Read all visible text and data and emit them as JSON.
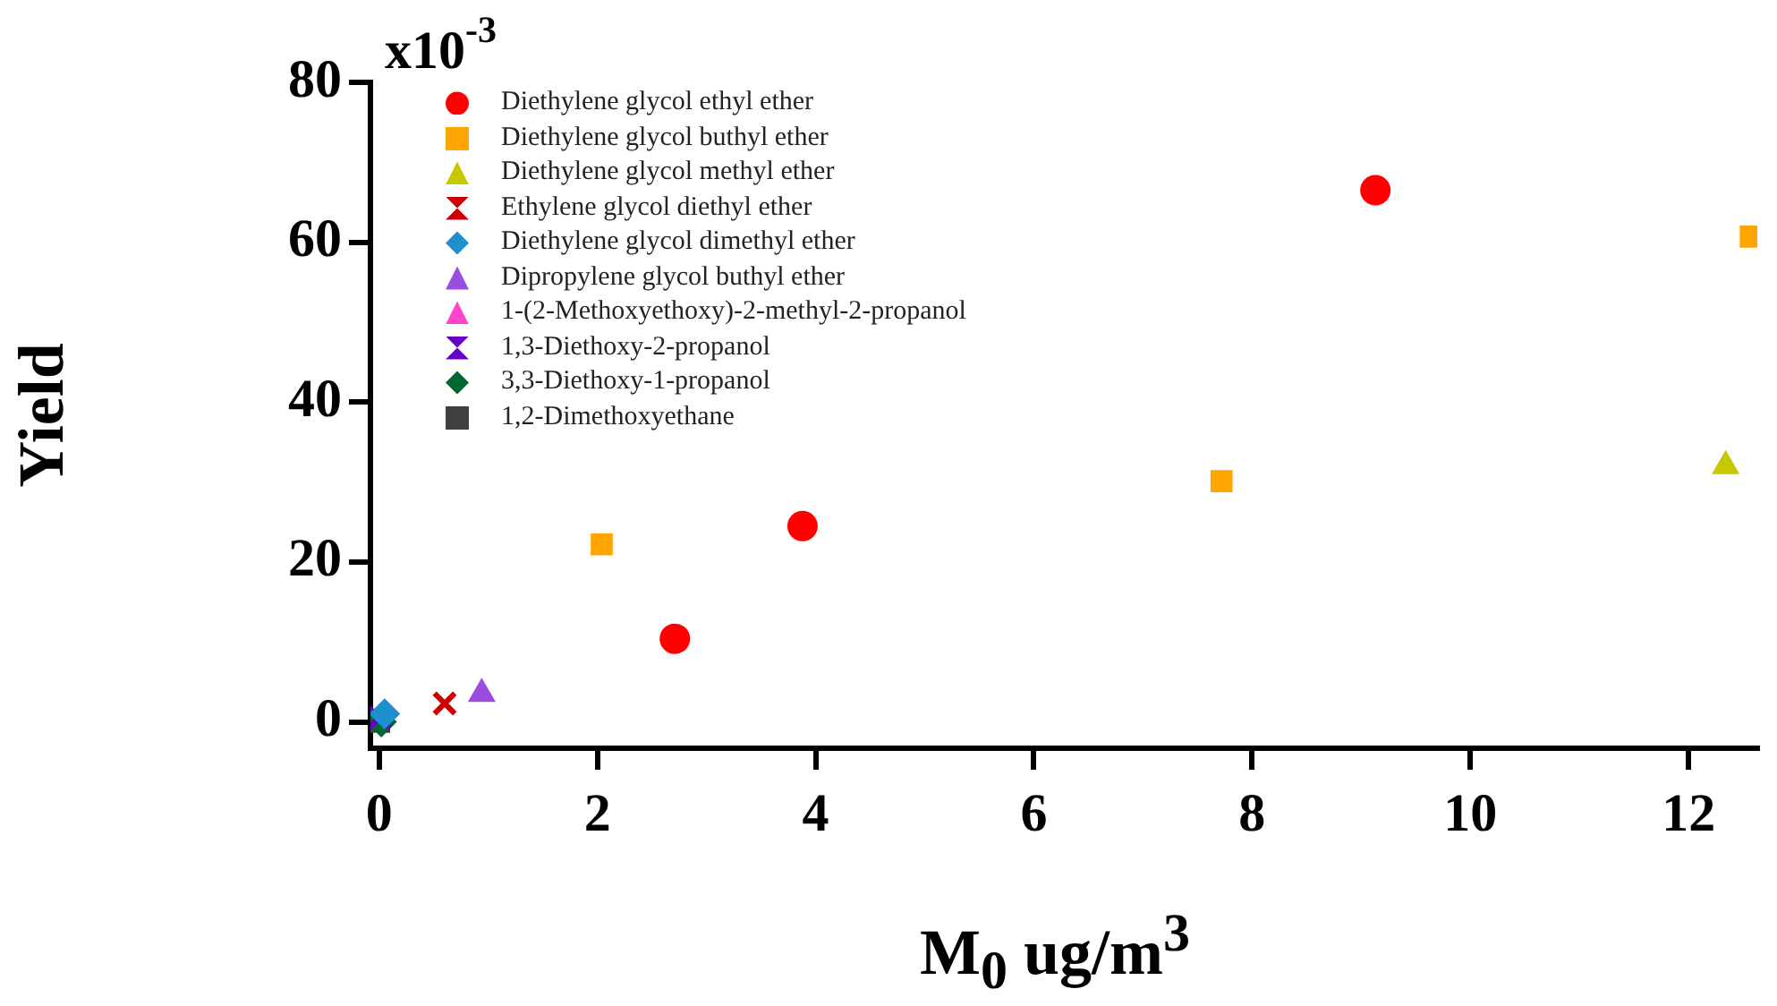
{
  "chart_data": {
    "type": "scatter",
    "xlabel": "M$_{0}$ ug/m$^{3}$",
    "ylabel": "Yield",
    "xlim": [
      -0.08,
      12.63
    ],
    "ylim": [
      -3.3,
      80
    ],
    "xticks": [
      0,
      2,
      4,
      6,
      8,
      10,
      12
    ],
    "yticks": [
      0,
      20,
      40,
      60,
      80
    ],
    "annotations": [
      "x10$^{-3}$"
    ],
    "grid": false,
    "legend": "top left",
    "series": [
      {
        "name": "Diethylene glycol ethyl ether",
        "color": "#ff0000",
        "marker": "circle",
        "x": [
          2.71,
          3.88,
          9.13
        ],
        "values": [
          10.4,
          24.5,
          66.5
        ]
      },
      {
        "name": "Diethylene glycol buthyl ether",
        "color": "#ffa500",
        "marker": "square",
        "x": [
          2.04,
          7.72,
          12.57
        ],
        "values": [
          22.2,
          30.1,
          60.7
        ]
      },
      {
        "name": "Diethylene glycol methyl ether",
        "color": "#c8c800",
        "marker": "triangle",
        "x": [
          12.34
        ],
        "values": [
          32.0
        ]
      },
      {
        "name": "Ethylene glycol diethyl ether",
        "color": "#cc0000",
        "marker": "cross",
        "x": [
          0.6
        ],
        "values": [
          2.3
        ]
      },
      {
        "name": "Diethylene glycol dimethyl ether",
        "color": "#1e90d0",
        "marker": "diamond",
        "x": [
          0.05
        ],
        "values": [
          1.0
        ]
      },
      {
        "name": "Dipropylene glycol buthyl ether",
        "color": "#9b4de0",
        "marker": "triangle",
        "x": [
          0.94
        ],
        "values": [
          3.5
        ]
      },
      {
        "name": "1-(2-Methoxyethoxy)-2-methyl-2-propanol",
        "color": "#ff44cc",
        "marker": "triangle",
        "x": [
          null
        ],
        "values": [
          null
        ]
      },
      {
        "name": "1,3-Diethoxy-2-propanol",
        "color": "#6a00c8",
        "marker": "cross",
        "x": [
          0.0
        ],
        "values": [
          0.5
        ]
      },
      {
        "name": "3,3-Diethoxy-1-propanol",
        "color": "#006633",
        "marker": "diamond",
        "x": [
          0.02
        ],
        "values": [
          0.0
        ]
      },
      {
        "name": "1,2-Dimethoxyethane",
        "color": "#404040",
        "marker": "square",
        "x": [
          0.0
        ],
        "values": [
          0.0
        ]
      }
    ]
  }
}
